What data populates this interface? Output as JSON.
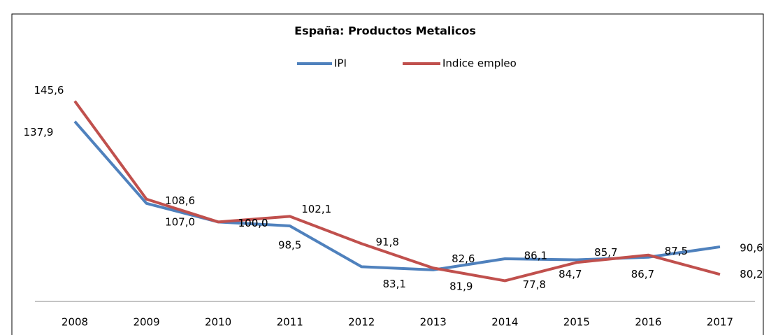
{
  "chart_data": {
    "type": "line",
    "title": "España: Productos Metalicos",
    "categories": [
      "2008",
      "2009",
      "2010",
      "2011",
      "2012",
      "2013",
      "2014",
      "2015",
      "2016",
      "2017"
    ],
    "series": [
      {
        "name": "IPI",
        "color": "#4f81bd",
        "values": [
          137.9,
          107.0,
          100.0,
          98.5,
          83.1,
          81.9,
          86.1,
          85.7,
          86.7,
          90.6
        ],
        "value_labels": [
          "137,9",
          "107,0",
          "100,0",
          "98,5",
          "83,1",
          "81,9",
          "86,1",
          "85,7",
          "86,7",
          "90,6"
        ]
      },
      {
        "name": "Indice empleo",
        "color": "#c0504d",
        "values": [
          145.6,
          108.6,
          100.0,
          102.1,
          91.8,
          82.6,
          77.8,
          84.7,
          87.5,
          80.2
        ],
        "value_labels": [
          "145,6",
          "108,6",
          "100,0",
          "102,1",
          "91,8",
          "82,6",
          "77,8",
          "84,7",
          "87,5",
          "80,2"
        ]
      }
    ],
    "ylim": [
      70,
      160
    ],
    "legend": "top"
  }
}
